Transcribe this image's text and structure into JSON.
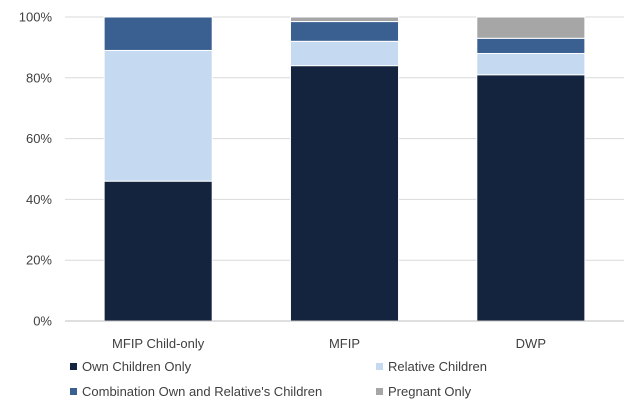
{
  "chart_data": {
    "type": "bar",
    "stacked": true,
    "categories": [
      "MFIP Child-only",
      "MFIP",
      "DWP"
    ],
    "series": [
      {
        "name": "Own Children Only",
        "color": "#14243f",
        "values": [
          46,
          84,
          81
        ]
      },
      {
        "name": "Relative Children",
        "color": "#c5d9f1",
        "values": [
          43,
          8,
          7
        ]
      },
      {
        "name": "Combination Own and Relative's Children",
        "color": "#3a5f91",
        "values": [
          11,
          6.5,
          5
        ]
      },
      {
        "name": "Pregnant Only",
        "color": "#a6a6a6",
        "values": [
          0,
          1.5,
          7
        ]
      }
    ],
    "ylim": [
      0,
      100
    ],
    "yticks": [
      0,
      20,
      40,
      60,
      80,
      100
    ],
    "ytick_labels": [
      "0%",
      "20%",
      "40%",
      "60%",
      "80%",
      "100%"
    ],
    "grid": true,
    "legend_position": "bottom"
  }
}
